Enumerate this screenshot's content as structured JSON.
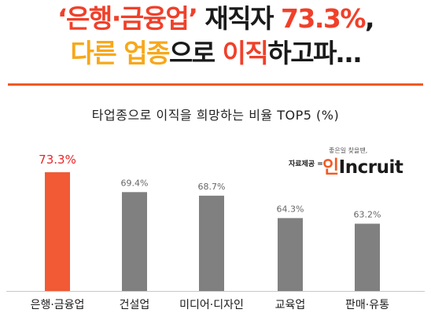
{
  "headline": {
    "line1": [
      {
        "text": "‘은행·금융업’",
        "color": "#f0402a"
      },
      {
        "text": " 재직자 ",
        "color": "#1a1a1a"
      },
      {
        "text": "73.3%",
        "color": "#f0402a"
      },
      {
        "text": ",",
        "color": "#1a1a1a"
      }
    ],
    "line2": [
      {
        "text": "다른 업종",
        "color": "#f7a81b"
      },
      {
        "text": "으로 ",
        "color": "#1a1a1a"
      },
      {
        "text": "이직",
        "color": "#f0402a"
      },
      {
        "text": "하고파…",
        "color": "#1a1a1a"
      }
    ]
  },
  "source": {
    "label": "자료제공 =",
    "logo_tagline": "좋은일 찾을땐,",
    "logo_prefix": "인",
    "logo_text": "Incruit"
  },
  "chart_data": {
    "type": "bar",
    "title": "타업종으로 이직을 희망하는 비율 TOP5 (%)",
    "categories": [
      "은행·금융업",
      "건설업",
      "미디어·디자인",
      "교육업",
      "판매·유통"
    ],
    "values": [
      73.3,
      69.4,
      68.7,
      64.3,
      63.2
    ],
    "data_labels": [
      "73.3%",
      "69.4%",
      "68.7%",
      "64.3%",
      "63.2%"
    ],
    "colors": [
      "#f15a35",
      "#808080",
      "#808080",
      "#808080",
      "#808080"
    ],
    "label_colors": [
      "#e8262a",
      "#666666",
      "#666666",
      "#666666",
      "#666666"
    ],
    "ylim": [
      50,
      75
    ],
    "grid": false,
    "legend": "none"
  }
}
